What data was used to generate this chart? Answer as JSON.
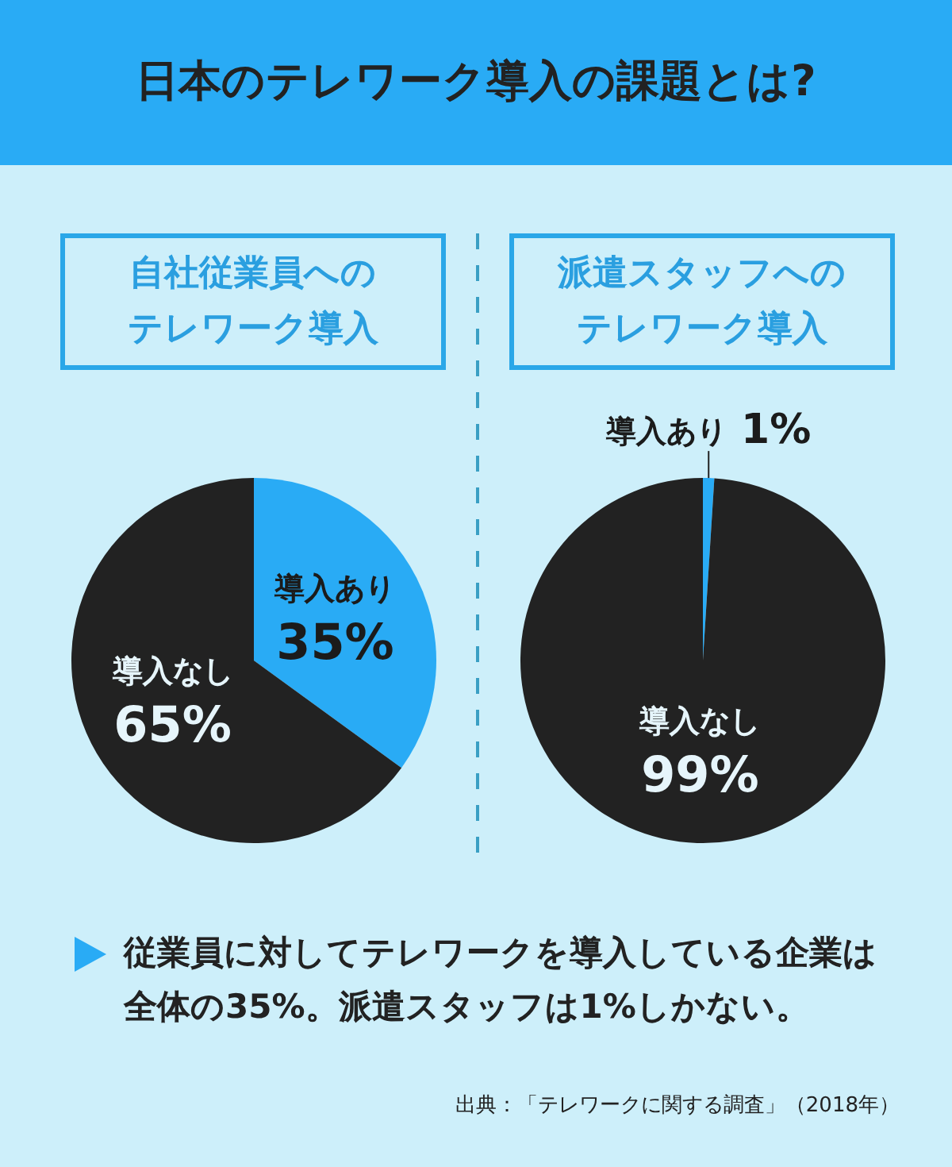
{
  "chart_data": [
    {
      "type": "other",
      "title": "日本のテレワーク導入の課題とは?"
    },
    {
      "type": "pie",
      "title": "自社従業員へのテレワーク導入",
      "categories": [
        "導入あり",
        "導入なし"
      ],
      "values": [
        35,
        65
      ],
      "colors": [
        "#29abf5",
        "#222222"
      ],
      "value_labels": [
        "35%",
        "65%"
      ]
    },
    {
      "type": "pie",
      "title": "派遣スタッフへのテレワーク導入",
      "categories": [
        "導入あり",
        "導入なし"
      ],
      "values": [
        1,
        99
      ],
      "colors": [
        "#29abf5",
        "#222222"
      ],
      "value_labels": [
        "1%",
        "99%"
      ]
    },
    {
      "type": "other",
      "annotations": [
        "従業員に対してテレワークを導入している企業は全体の35%。派遣スタッフは1%しかない。",
        "出典：「テレワークに関する調査」（2018年）"
      ]
    }
  ]
}
